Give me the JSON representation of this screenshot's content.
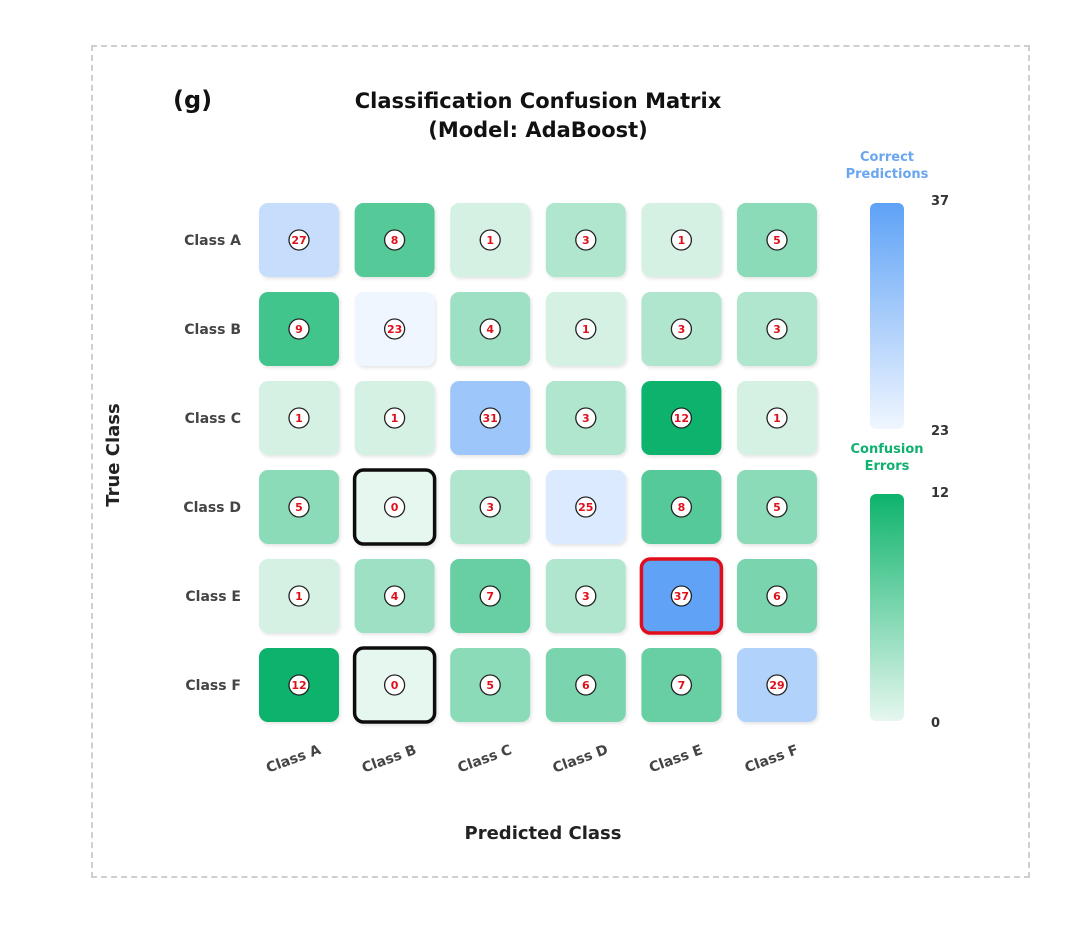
{
  "chart_data": {
    "type": "heatmap",
    "panel_label": "(g)",
    "title": "Classification Confusion Matrix",
    "subtitle": "(Model: AdaBoost)",
    "xlabel": "Predicted Class",
    "ylabel": "True Class",
    "rows": [
      "Class A",
      "Class B",
      "Class C",
      "Class D",
      "Class E",
      "Class F"
    ],
    "cols": [
      "Class A",
      "Class B",
      "Class C",
      "Class D",
      "Class E",
      "Class F"
    ],
    "values": [
      [
        27,
        8,
        1,
        3,
        1,
        5
      ],
      [
        9,
        23,
        4,
        1,
        3,
        3
      ],
      [
        1,
        1,
        31,
        3,
        12,
        1
      ],
      [
        5,
        0,
        3,
        25,
        8,
        5
      ],
      [
        1,
        4,
        7,
        3,
        37,
        6
      ],
      [
        12,
        0,
        5,
        6,
        7,
        29
      ]
    ],
    "highlight_max": {
      "row": 4,
      "col": 4,
      "color": "#e0101a"
    },
    "highlight_zero": [
      {
        "row": 3,
        "col": 1
      },
      {
        "row": 5,
        "col": 1
      }
    ],
    "colorbar_correct": {
      "title_line1": "Correct",
      "title_line2": "Predictions",
      "min": 23,
      "max": 37,
      "min_label": "23",
      "max_label": "37",
      "color_low": "#f0f6ff",
      "color_high": "#5ea2f6"
    },
    "colorbar_errors": {
      "title_line1": "Confusion",
      "title_line2": "Errors",
      "min": 0,
      "max": 12,
      "min_label": "0",
      "max_label": "12",
      "color_low": "#e6f7ef",
      "color_high": "#0db36c"
    }
  }
}
